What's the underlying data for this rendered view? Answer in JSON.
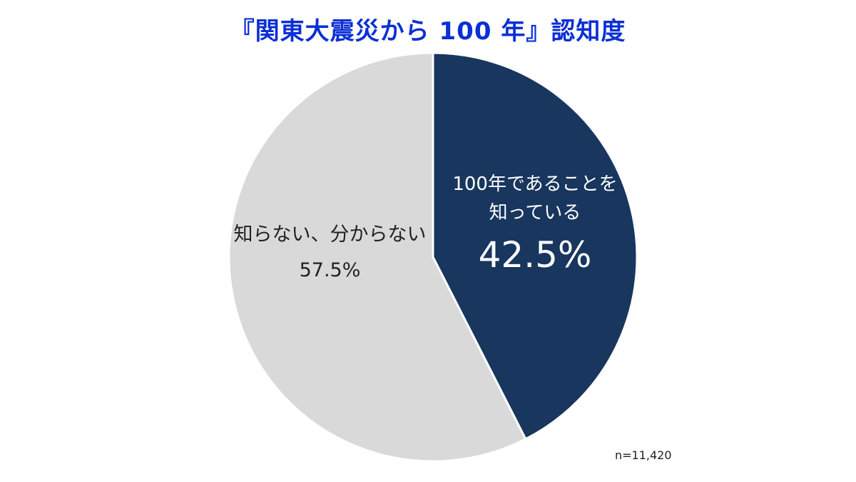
{
  "chart_data": {
    "type": "pie",
    "title": "『関東大震災から 100 年』認知度",
    "slices": [
      {
        "label_lines": [
          "100年であることを",
          "知っている"
        ],
        "value": 42.5,
        "value_label": "42.5%",
        "color": "#18365e"
      },
      {
        "label_lines": [
          "知らない、分からない"
        ],
        "value": 57.5,
        "value_label": "57.5%",
        "color": "#d9d9d9"
      }
    ],
    "sample_size": "n=11,420"
  }
}
